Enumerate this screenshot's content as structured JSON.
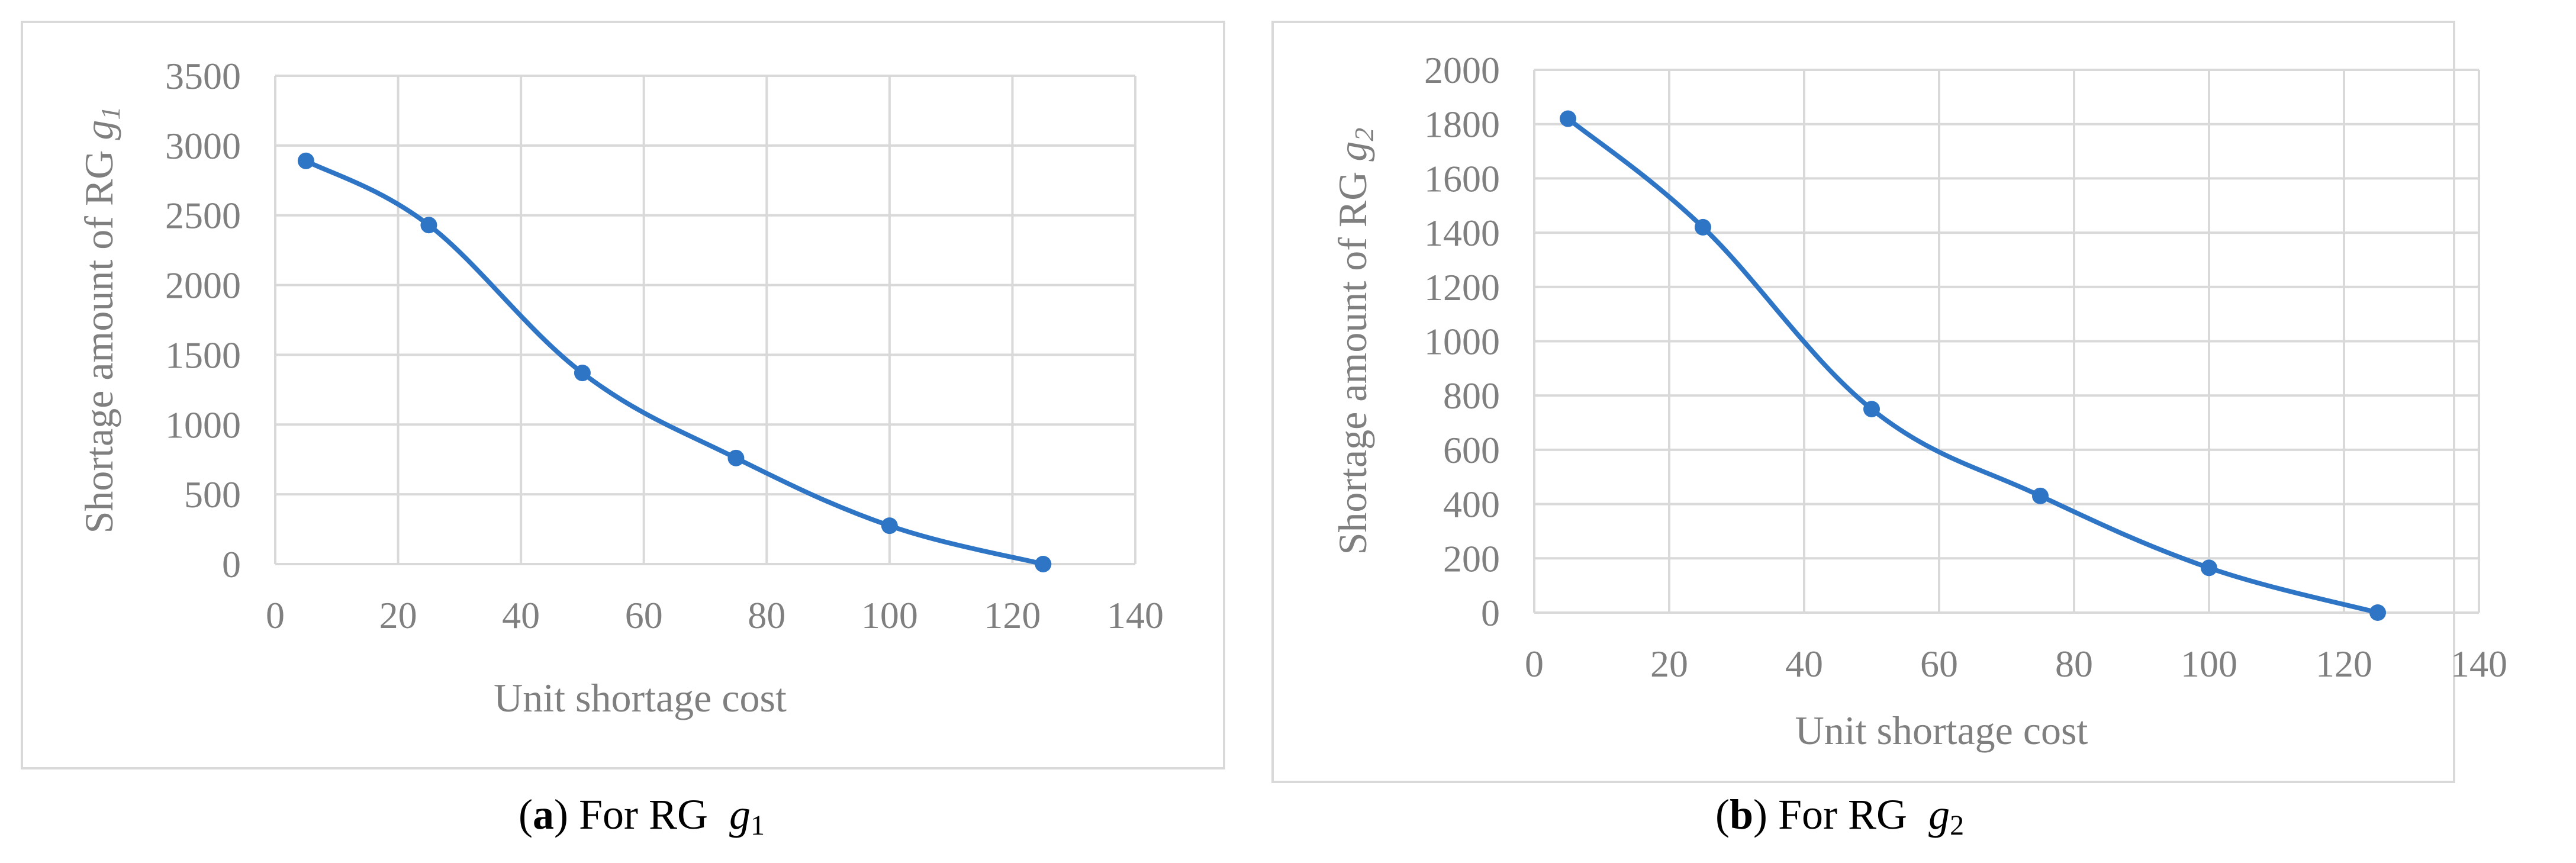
{
  "chart_data": [
    {
      "type": "line",
      "title": "",
      "xlabel": "Unit shortage cost",
      "ylabel": "Shortage amount of RG",
      "ylabel_var": "g",
      "ylabel_sub": "1",
      "xlim": [
        0,
        140
      ],
      "ylim": [
        0,
        3500
      ],
      "xticks": [
        "0",
        "20",
        "40",
        "60",
        "80",
        "100",
        "120",
        "140"
      ],
      "yticks": [
        "0",
        "500",
        "1000",
        "1500",
        "2000",
        "2500",
        "3000",
        "3500"
      ],
      "grid": true,
      "smooth": true,
      "series": [
        {
          "x": [
            5,
            25,
            50,
            75,
            100,
            125
          ],
          "y": [
            2890,
            2430,
            1370,
            760,
            275,
            0
          ],
          "color": "#2e75c6"
        }
      ],
      "caption": {
        "letter": "a",
        "text": "For RG",
        "var": "g",
        "sub": "1"
      }
    },
    {
      "type": "line",
      "title": "",
      "xlabel": "Unit shortage cost",
      "ylabel": "Shortage amount of RG",
      "ylabel_var": "g",
      "ylabel_sub": "2",
      "xlim": [
        0,
        140
      ],
      "ylim": [
        0,
        2000
      ],
      "xticks": [
        "0",
        "20",
        "40",
        "60",
        "80",
        "100",
        "120",
        "140"
      ],
      "yticks": [
        "0",
        "200",
        "400",
        "600",
        "800",
        "1000",
        "1200",
        "1400",
        "1600",
        "1800",
        "2000"
      ],
      "grid": true,
      "smooth": true,
      "series": [
        {
          "x": [
            5,
            25,
            50,
            75,
            100,
            125
          ],
          "y": [
            1820,
            1420,
            750,
            430,
            165,
            0
          ],
          "color": "#2e75c6"
        }
      ],
      "caption": {
        "letter": "b",
        "text": "For RG",
        "var": "g",
        "sub": "2"
      }
    }
  ]
}
